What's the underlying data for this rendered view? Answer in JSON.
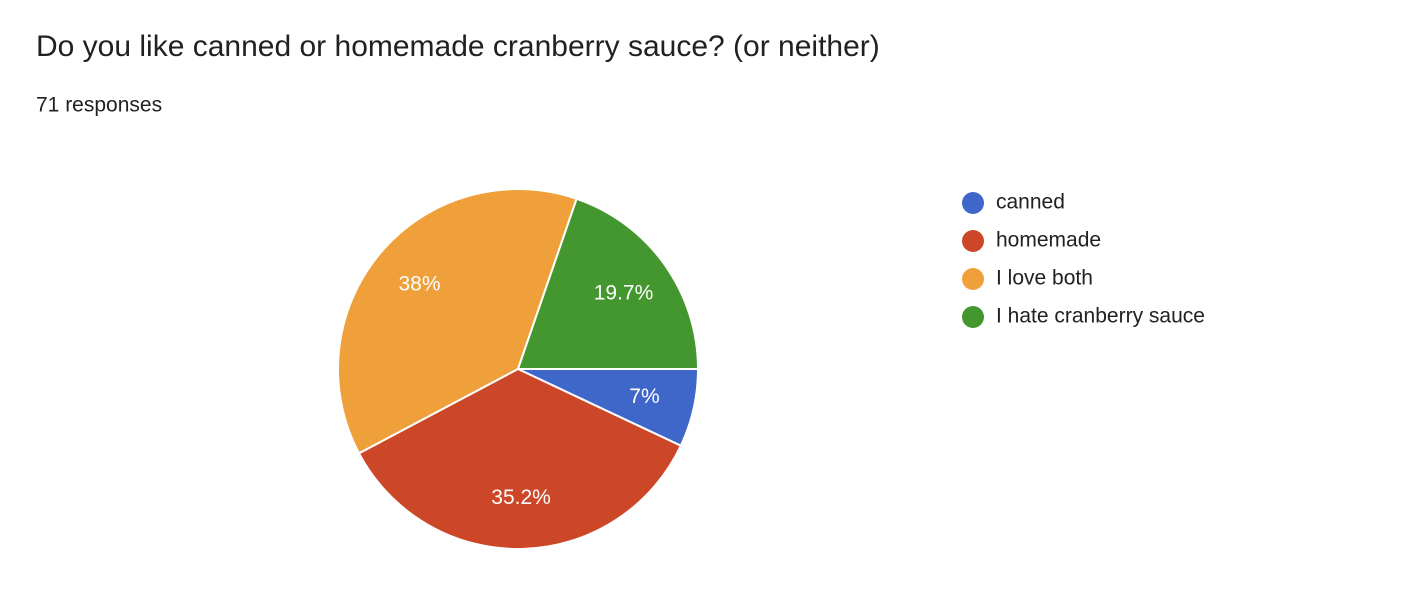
{
  "chart_data": {
    "type": "pie",
    "title": "Do you like canned or homemade cranberry sauce? (or neither)",
    "subtitle": "71 responses",
    "categories": [
      "canned",
      "homemade",
      "I love both",
      "I hate cranberry sauce"
    ],
    "values": [
      7,
      35.2,
      38,
      19.7
    ],
    "value_labels": [
      "7%",
      "35.2%",
      "38%",
      "19.7%"
    ],
    "colors": [
      "#3f67c9",
      "#cc4727",
      "#f0a03a",
      "#44962f"
    ],
    "legend": "right"
  }
}
